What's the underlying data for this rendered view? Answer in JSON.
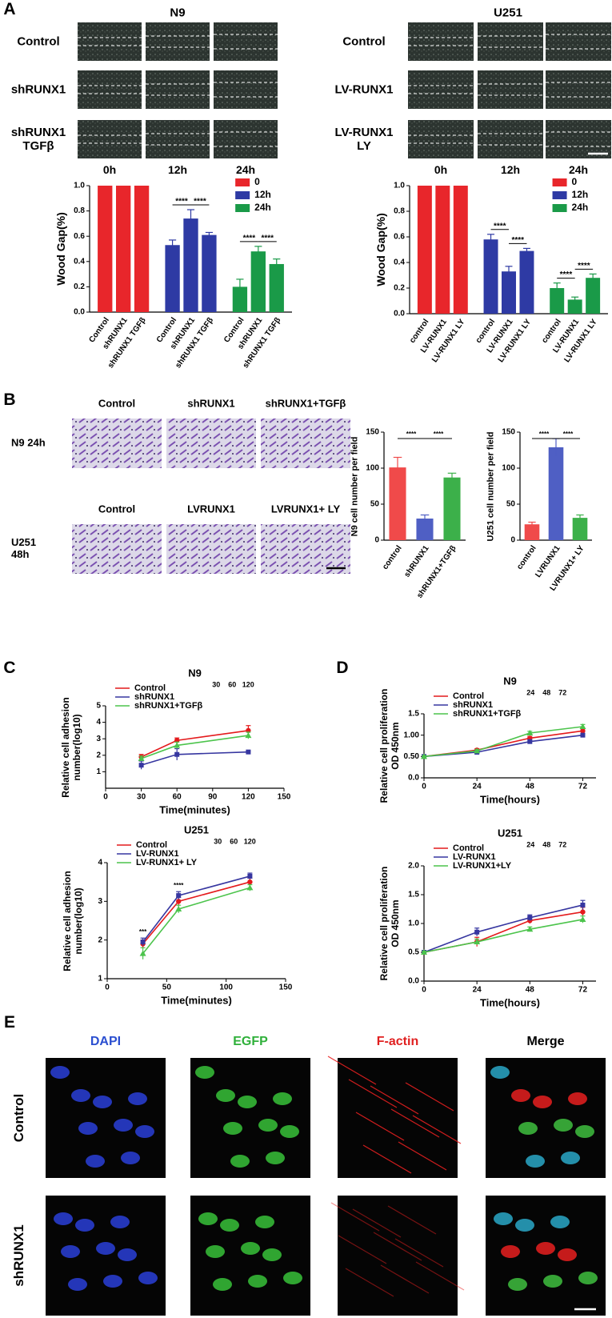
{
  "panel_labels": [
    "A",
    "B",
    "C",
    "D",
    "E"
  ],
  "wound": {
    "cell_lines": [
      "N9",
      "U251"
    ],
    "rows_n9": [
      "Control",
      "shRUNX1",
      "shRUNX1 TGFβ"
    ],
    "rows_u251": [
      "Control",
      "LV-RUNX1",
      "LV-RUNX1 LY"
    ],
    "times": [
      "0h",
      "12h",
      "24h"
    ]
  },
  "transwell": {
    "n9_cols": [
      "Control",
      "shRUNX1",
      "shRUNX1+TGFβ"
    ],
    "u251_cols": [
      "Control",
      "LVRUNX1",
      "LVRUNX1+ LY"
    ],
    "rows": [
      "N9 24h",
      "U251 48h"
    ]
  },
  "immunofluorescence": {
    "channels": [
      "DAPI",
      "EGFP",
      "F-actin",
      "Merge"
    ],
    "rows": [
      "Control",
      "shRUNX1"
    ]
  },
  "chart_data": [
    {
      "type": "grouped_bar",
      "y_label": "Wood Gap(%)",
      "categories": [
        "Control",
        "shRUNX1",
        "shRUNX1 TGFβ"
      ],
      "series": [
        {
          "name": "0",
          "color": "#e8262b",
          "values": [
            1,
            1,
            1
          ]
        },
        {
          "name": "12h",
          "color": "#2e3aa4",
          "values": [
            0.53,
            0.74,
            0.61
          ],
          "errors": [
            0.04,
            0.07,
            0.02
          ]
        },
        {
          "name": "24h",
          "color": "#1a9a48",
          "values": [
            0.2,
            0.48,
            0.38
          ],
          "errors": [
            0.06,
            0.04,
            0.04
          ]
        }
      ],
      "ylim": [
        0,
        1.0
      ],
      "yticks": [
        {
          "value": 0,
          "label": "0.0"
        },
        0.2,
        0.4,
        0.6,
        0.8,
        {
          "value": 1.0,
          "label": "1.0"
        }
      ],
      "annotations": [
        "****",
        "****",
        "****",
        "****"
      ]
    },
    {
      "type": "grouped_bar",
      "y_label": "Wood Gap(%)",
      "categories": [
        "control",
        "LV-RUNX1",
        "LV-RUNX1 LY"
      ],
      "series": [
        {
          "name": "0",
          "color": "#e8262b",
          "values": [
            1,
            1,
            1
          ]
        },
        {
          "name": "12h",
          "color": "#2e3aa4",
          "values": [
            0.58,
            0.33,
            0.49
          ],
          "errors": [
            0.04,
            0.04,
            0.02
          ]
        },
        {
          "name": "24h",
          "color": "#1a9a48",
          "values": [
            0.2,
            0.11,
            0.28
          ],
          "errors": [
            0.04,
            0.02,
            0.03
          ]
        }
      ],
      "ylim": [
        0,
        1.0
      ],
      "yticks": [
        {
          "value": 0,
          "label": "0.0"
        },
        0.2,
        0.4,
        0.6,
        0.8,
        {
          "value": 1.0,
          "label": "1.0"
        }
      ],
      "annotations": [
        "****",
        "****",
        "****",
        "****"
      ]
    },
    {
      "type": "bar",
      "y_label": "N9 cell number per field",
      "categories": [
        "control",
        "shRUNX1",
        "shRUNX1+TGFβ"
      ],
      "values": [
        101,
        30,
        87
      ],
      "errors": [
        14,
        5,
        6
      ],
      "colors": [
        "#f04a4a",
        "#4f5fc4",
        "#3cb04a"
      ],
      "ylim": [
        0,
        150
      ],
      "yticks": [
        0,
        50,
        100,
        150
      ],
      "annotations": [
        "****",
        "****"
      ]
    },
    {
      "type": "bar",
      "y_label": "U251 cell number per field",
      "categories": [
        "control",
        "LVRUNX1",
        "LVRUNX1+ LY"
      ],
      "values": [
        22,
        129,
        31
      ],
      "errors": [
        3,
        12,
        4
      ],
      "colors": [
        "#f04a4a",
        "#4f5fc4",
        "#3cb04a"
      ],
      "ylim": [
        0,
        150
      ],
      "yticks": [
        0,
        50,
        100,
        150
      ],
      "annotations": [
        "****",
        "****"
      ]
    },
    {
      "type": "line",
      "title": "N9",
      "x_label": "Time(minutes)",
      "y_label": "Relative cell adhesion number(log10)",
      "x": [
        30,
        60,
        120
      ],
      "series": [
        {
          "name": "Control",
          "color": "#e41a1c",
          "marker": "circle",
          "values": [
            1.9,
            2.9,
            3.5
          ],
          "errors": [
            0.15,
            0.15,
            0.3
          ]
        },
        {
          "name": "shRUNX1",
          "color": "#3636a0",
          "marker": "square",
          "values": [
            1.4,
            2.05,
            2.2
          ],
          "errors": [
            0.25,
            0.35,
            0.05
          ]
        },
        {
          "name": "shRUNX1+TGFβ",
          "color": "#4cc44c",
          "marker": "triangle",
          "values": [
            1.8,
            2.6,
            3.2
          ],
          "errors": [
            0.15,
            0.2,
            0.2
          ]
        }
      ],
      "xlim": [
        0,
        150
      ],
      "xticks": [
        0,
        30,
        60,
        90,
        120,
        150
      ],
      "ylim": [
        0,
        5
      ],
      "yticks": [
        1,
        2,
        3,
        4,
        5
      ],
      "annotations": [
        "30",
        "60",
        "120"
      ]
    },
    {
      "type": "line",
      "title": "U251",
      "x_label": "Time(minutes)",
      "y_label": "Relative cell adhesion number(log10)",
      "x": [
        30,
        60,
        120
      ],
      "series": [
        {
          "name": "Control",
          "color": "#e41a1c",
          "marker": "circle",
          "values": [
            1.9,
            3.0,
            3.5
          ],
          "errors": [
            0.1,
            0.1,
            0.1
          ]
        },
        {
          "name": "LV-RUNX1",
          "color": "#3636a0",
          "marker": "square",
          "values": [
            1.95,
            3.15,
            3.65
          ],
          "errors": [
            0.1,
            0.1,
            0.08
          ]
        },
        {
          "name": "LV-RUNX1+ LY",
          "color": "#4cc44c",
          "marker": "triangle",
          "values": [
            1.65,
            2.8,
            3.35
          ],
          "errors": [
            0.15,
            0.1,
            0.08
          ]
        }
      ],
      "xlim": [
        0,
        150
      ],
      "xticks": [
        0,
        50,
        100,
        150
      ],
      "ylim": [
        1,
        4
      ],
      "yticks": [
        1,
        2,
        3,
        4
      ],
      "annotations": [
        "30",
        "60",
        "120"
      ],
      "point_labels": [
        "***",
        "****"
      ]
    },
    {
      "type": "line",
      "title": "N9",
      "x_label": "Time(hours)",
      "y_label": "Relative cell proliferation OD 450nm",
      "x": [
        0,
        24,
        48,
        72
      ],
      "series": [
        {
          "name": "Control",
          "color": "#e41a1c",
          "marker": "circle",
          "values": [
            0.5,
            0.65,
            0.93,
            1.1
          ],
          "errors": [
            0.02,
            0.03,
            0.04,
            0.05
          ]
        },
        {
          "name": "shRUNX1",
          "color": "#3636a0",
          "marker": "square",
          "values": [
            0.5,
            0.6,
            0.85,
            1.0
          ],
          "errors": [
            0.02,
            0.03,
            0.04,
            0.04
          ]
        },
        {
          "name": "shRUNX1+TGFβ",
          "color": "#4cc44c",
          "marker": "triangle",
          "values": [
            0.5,
            0.63,
            1.05,
            1.2
          ],
          "errors": [
            0.02,
            0.03,
            0.04,
            0.05
          ]
        }
      ],
      "xlim": [
        0,
        78
      ],
      "xticks": [
        0,
        24,
        48,
        72
      ],
      "ylim": [
        0,
        1.5
      ],
      "yticks": [
        {
          "value": 0,
          "label": "0.0"
        },
        {
          "value": 0.5,
          "label": "0.50"
        },
        {
          "value": 1.0,
          "label": "1.00"
        },
        1.5
      ],
      "annotations": [
        "24",
        "48",
        "72"
      ]
    },
    {
      "type": "line",
      "title": "U251",
      "x_label": "Time(hours)",
      "y_label": "Relative cell proliferation OD 450nm",
      "x": [
        0,
        24,
        48,
        72
      ],
      "series": [
        {
          "name": "Control",
          "color": "#e41a1c",
          "marker": "circle",
          "values": [
            0.5,
            0.68,
            1.05,
            1.2
          ],
          "errors": [
            0.02,
            0.08,
            0.05,
            0.08
          ]
        },
        {
          "name": "LV-RUNX1",
          "color": "#3636a0",
          "marker": "square",
          "values": [
            0.5,
            0.85,
            1.1,
            1.32
          ],
          "errors": [
            0.02,
            0.07,
            0.05,
            0.08
          ]
        },
        {
          "name": "LV-RUNX1+LY",
          "color": "#4cc44c",
          "marker": "triangle",
          "values": [
            0.5,
            0.68,
            0.9,
            1.07
          ],
          "errors": [
            0.02,
            0.05,
            0.04,
            0.06
          ]
        }
      ],
      "xlim": [
        0,
        78
      ],
      "xticks": [
        0,
        24,
        48,
        72
      ],
      "ylim": [
        0,
        2.0
      ],
      "yticks": [
        {
          "value": 0,
          "label": "0.0"
        },
        0.5,
        {
          "value": 1.0,
          "label": "1.0"
        },
        1.5,
        {
          "value": 2.0,
          "label": "2.0"
        }
      ],
      "annotations": [
        "24",
        "48",
        "72"
      ]
    }
  ]
}
